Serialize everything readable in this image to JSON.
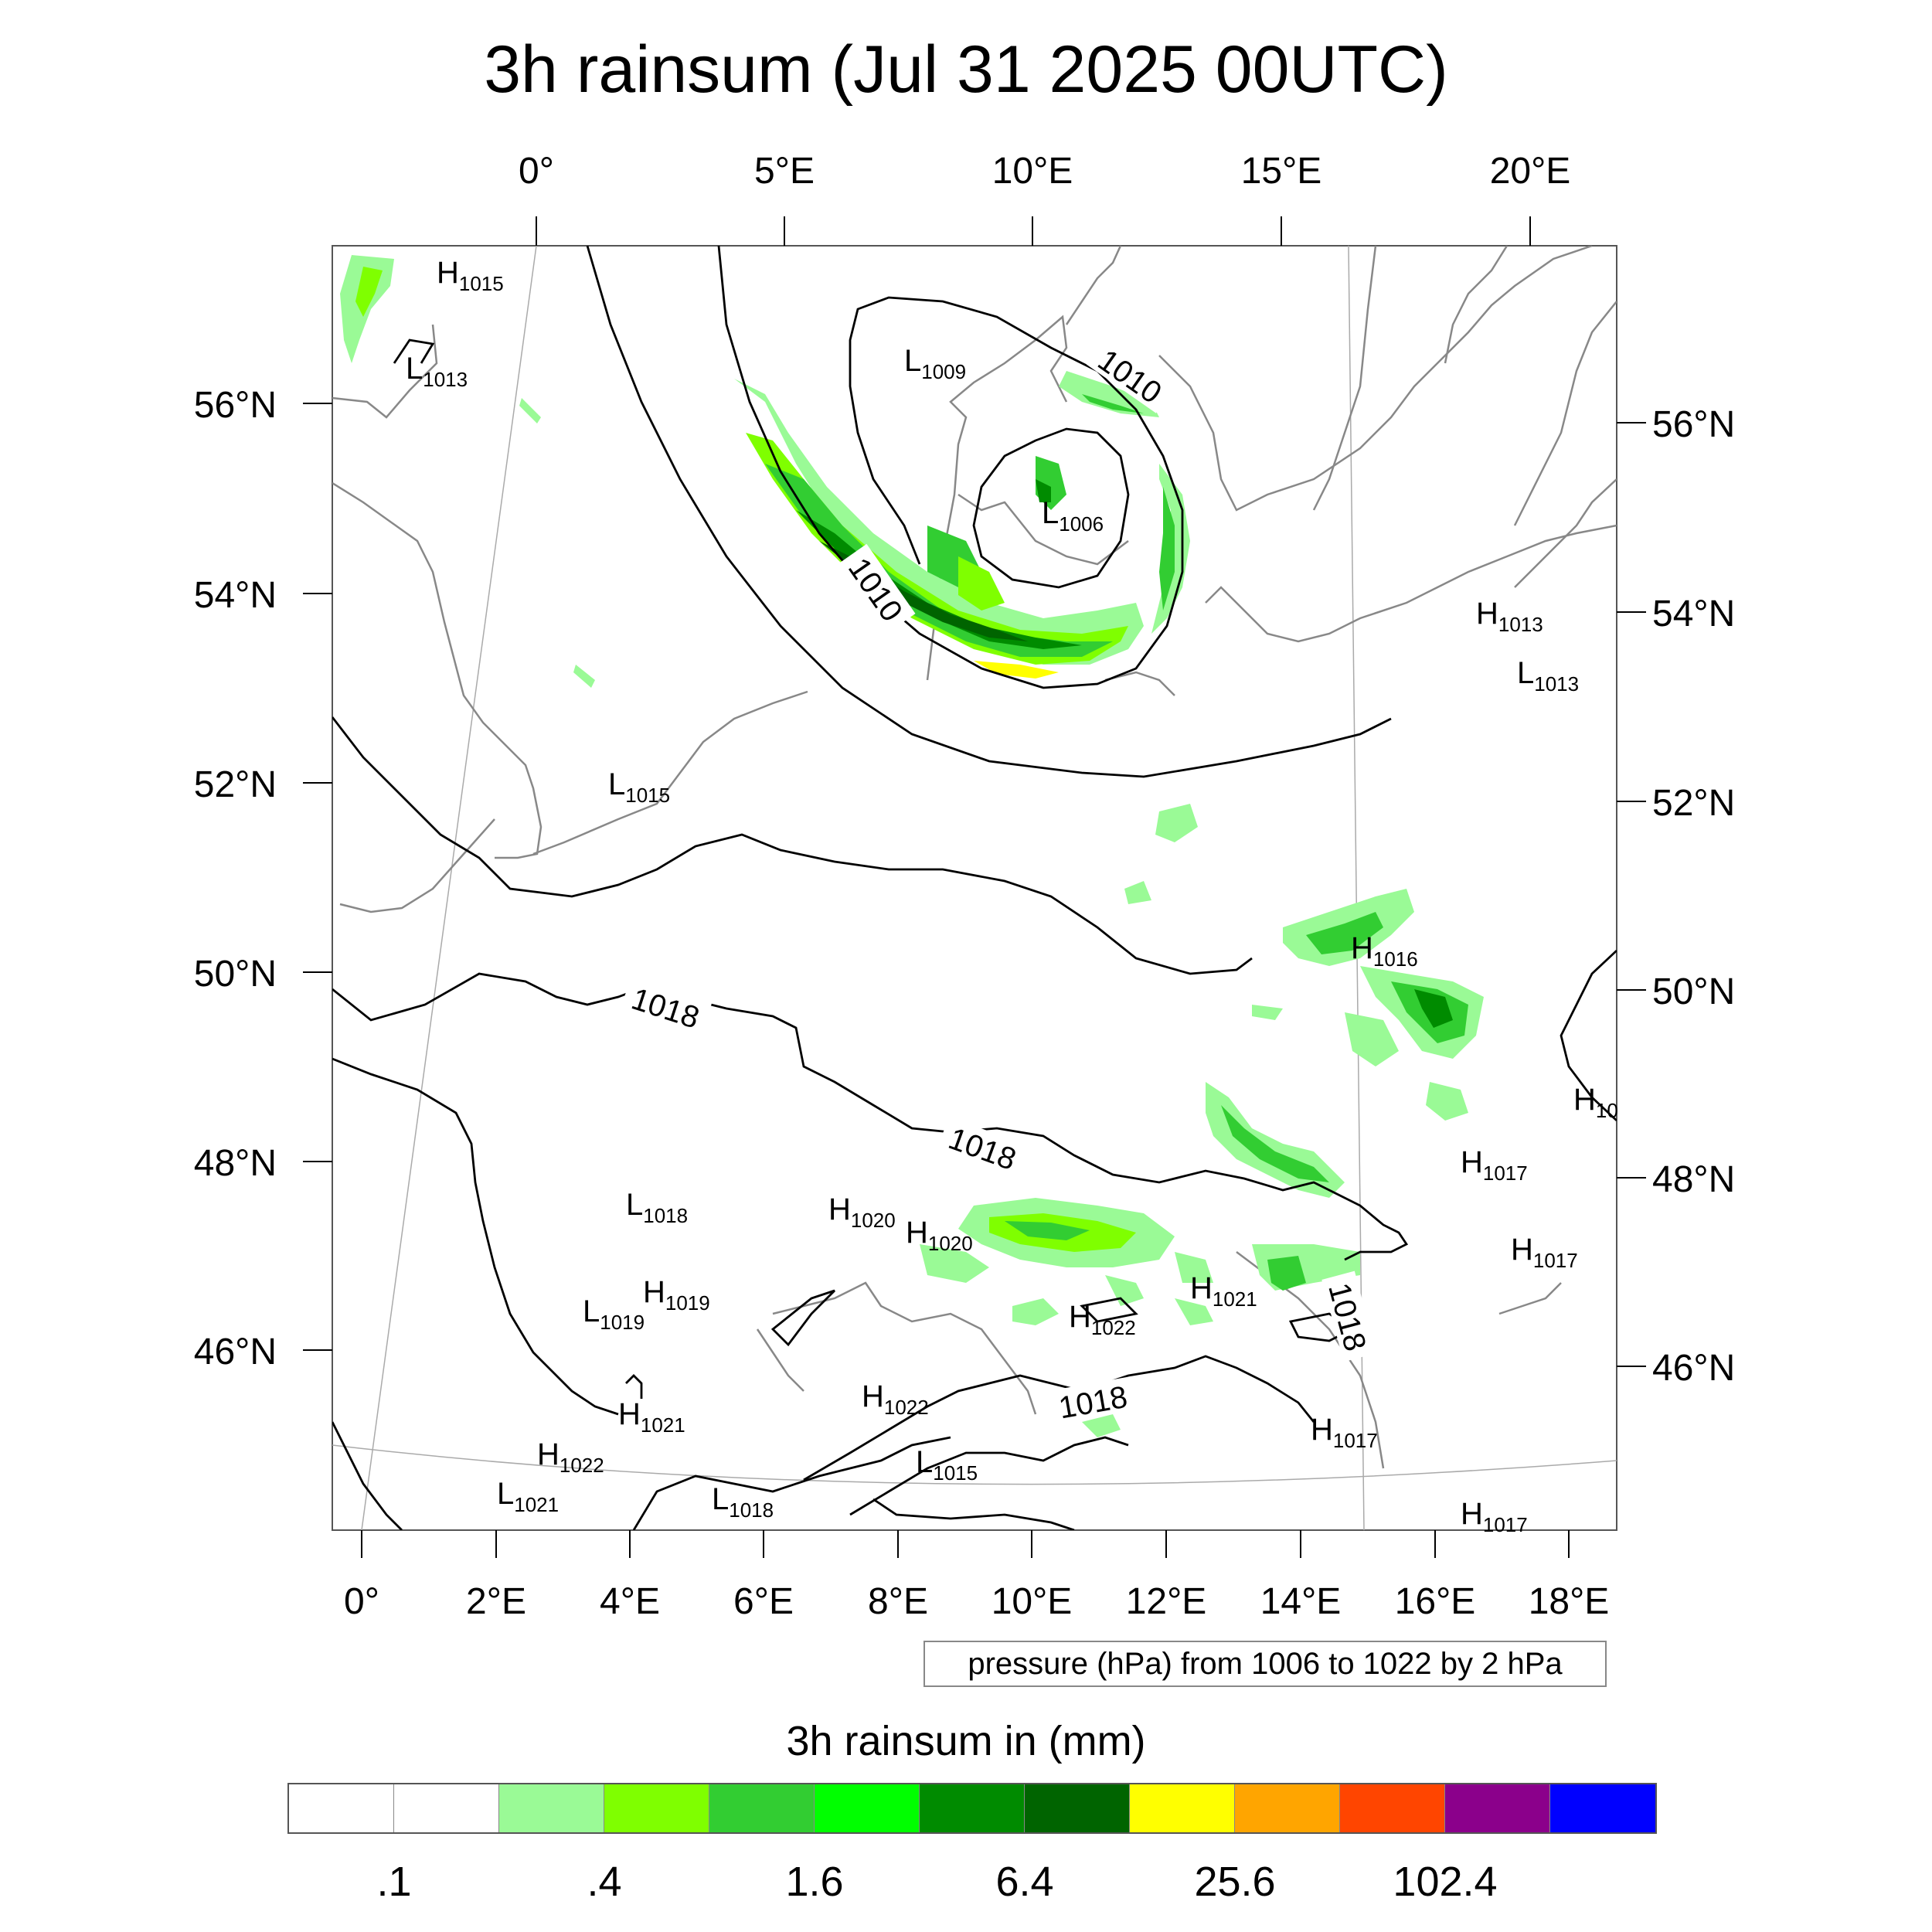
{
  "title": "3h rainsum (Jul 31 2025 00UTC)",
  "top_lon_labels": [
    "0°",
    "5°E",
    "10°E",
    "15°E",
    "20°E"
  ],
  "bottom_lon_labels": [
    "0°",
    "2°E",
    "4°E",
    "6°E",
    "8°E",
    "10°E",
    "12°E",
    "14°E",
    "16°E",
    "18°E"
  ],
  "left_lat_labels": [
    "56°N",
    "54°N",
    "52°N",
    "50°N",
    "48°N",
    "46°N"
  ],
  "right_lat_labels": [
    "56°N",
    "54°N",
    "52°N",
    "50°N",
    "48°N",
    "46°N"
  ],
  "isobar_labels": [
    "1010",
    "1010",
    "1018",
    "1018",
    "1018",
    "1018"
  ],
  "pressure_centers": [
    {
      "type": "H",
      "value": "1015"
    },
    {
      "type": "L",
      "value": "1013"
    },
    {
      "type": "L",
      "value": "1009"
    },
    {
      "type": "L",
      "value": "1006"
    },
    {
      "type": "H",
      "value": "1013"
    },
    {
      "type": "L",
      "value": "1013"
    },
    {
      "type": "L",
      "value": "1015"
    },
    {
      "type": "H",
      "value": "1016"
    },
    {
      "type": "H",
      "value": "10"
    },
    {
      "type": "H",
      "value": "1017"
    },
    {
      "type": "H",
      "value": "1017"
    },
    {
      "type": "L",
      "value": "1018"
    },
    {
      "type": "H",
      "value": "1020"
    },
    {
      "type": "H",
      "value": "1020"
    },
    {
      "type": "H",
      "value": "1019"
    },
    {
      "type": "L",
      "value": "1019"
    },
    {
      "type": "H",
      "value": "1021"
    },
    {
      "type": "H",
      "value": "1022"
    },
    {
      "type": "H",
      "value": "1021"
    },
    {
      "type": "H",
      "value": "1022"
    },
    {
      "type": "H",
      "value": "1022"
    },
    {
      "type": "L",
      "value": "1015"
    },
    {
      "type": "L",
      "value": "1021"
    },
    {
      "type": "L",
      "value": "1018"
    },
    {
      "type": "H",
      "value": "1017"
    },
    {
      "type": "H",
      "value": "1017"
    }
  ],
  "info_box": "pressure (hPa) from 1006 to 1022 by 2 hPa",
  "colorbar": {
    "title": "3h rainsum in (mm)",
    "colors": [
      "#ffffff",
      "#ffffff",
      "#9afa96",
      "#7fff00",
      "#32cd32",
      "#00ff00",
      "#008b00",
      "#006400",
      "#ffff00",
      "#ffa500",
      "#ff4500",
      "#8b008b",
      "#0000ff"
    ],
    "labels": [
      ".1",
      ".4",
      "1.6",
      "6.4",
      "25.6",
      "102.4"
    ]
  }
}
